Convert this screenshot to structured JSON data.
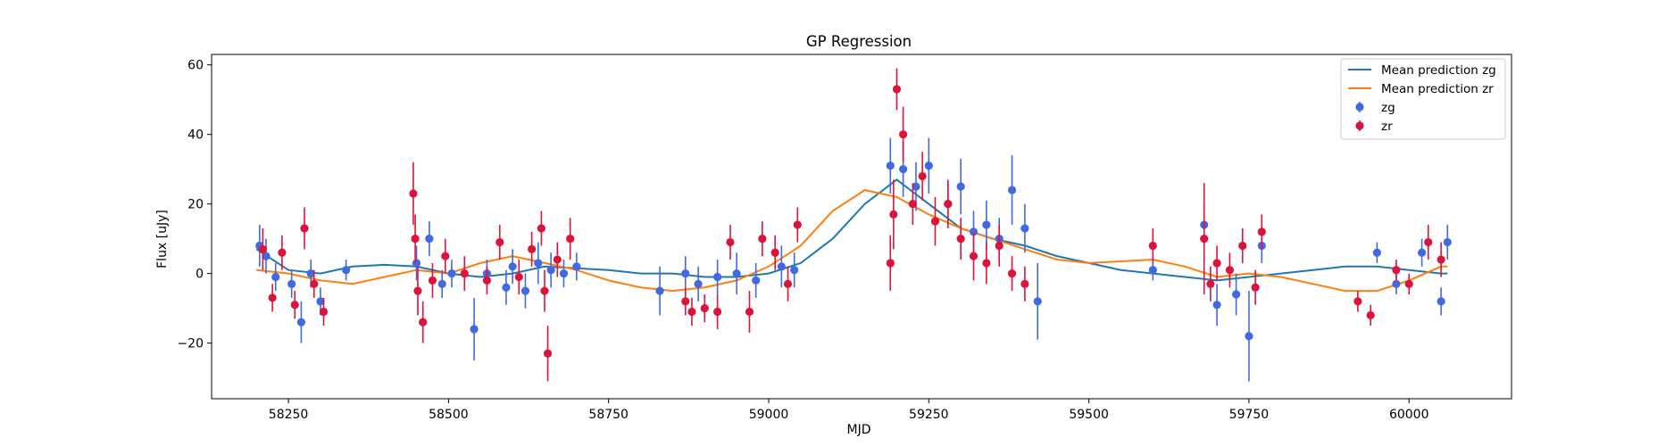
{
  "chart_data": {
    "type": "scatter",
    "title": "GP Regression",
    "xlabel": "MJD",
    "ylabel": "Flux [uJy]",
    "xlim": [
      58130,
      60160
    ],
    "ylim": [
      -36,
      63
    ],
    "xticks": [
      58250,
      58500,
      58750,
      59000,
      59250,
      59500,
      59750,
      60000
    ],
    "yticks": [
      -20,
      0,
      20,
      40,
      60
    ],
    "legend_position": "upper right",
    "grid": false,
    "series": [
      {
        "name": "Mean prediction zg",
        "kind": "line",
        "color": "#1f77b4",
        "x": [
          58200,
          58250,
          58300,
          58350,
          58400,
          58450,
          58500,
          58550,
          58600,
          58650,
          58700,
          58750,
          58800,
          58850,
          58900,
          58950,
          59000,
          59050,
          59100,
          59150,
          59200,
          59250,
          59300,
          59350,
          59400,
          59450,
          59500,
          59550,
          59600,
          59650,
          59700,
          59750,
          59800,
          59850,
          59900,
          59950,
          60000,
          60050,
          60060
        ],
        "y": [
          7,
          1,
          0,
          2,
          2.5,
          2,
          0,
          -1,
          0,
          2,
          1.5,
          1,
          0,
          0,
          -1,
          -1,
          0,
          3,
          10,
          20,
          27,
          20,
          13,
          10,
          8,
          5,
          3,
          1,
          0,
          -1,
          -2,
          -1,
          0,
          1,
          2,
          2,
          1,
          0,
          0
        ]
      },
      {
        "name": "Mean prediction zr",
        "kind": "line",
        "color": "#ff7f0e",
        "x": [
          58200,
          58250,
          58300,
          58350,
          58400,
          58450,
          58500,
          58550,
          58600,
          58650,
          58700,
          58750,
          58800,
          58850,
          58900,
          58950,
          59000,
          59050,
          59100,
          59150,
          59200,
          59250,
          59300,
          59350,
          59400,
          59450,
          59500,
          59550,
          59600,
          59650,
          59700,
          59750,
          59800,
          59850,
          59900,
          59950,
          60000,
          60050,
          60060
        ],
        "y": [
          1,
          0,
          -2,
          -3,
          -1,
          1,
          0,
          3,
          5,
          3,
          1,
          -2,
          -4,
          -5,
          -4,
          -2,
          2,
          8,
          18,
          24,
          22,
          17,
          13,
          10,
          7,
          4,
          3,
          3.5,
          4,
          2,
          -1,
          0,
          -1,
          -3,
          -5,
          -5,
          -2,
          2,
          2
        ]
      },
      {
        "name": "zg",
        "kind": "errorbar",
        "color": "#4169e1",
        "x": [
          58205,
          58215,
          58230,
          58255,
          58270,
          58285,
          58300,
          58340,
          58450,
          58470,
          58490,
          58505,
          58540,
          58560,
          58590,
          58600,
          58620,
          58640,
          58660,
          58680,
          58700,
          58830,
          58870,
          58890,
          58920,
          58950,
          58980,
          59020,
          59040,
          59190,
          59210,
          59230,
          59250,
          59280,
          59300,
          59320,
          59340,
          59360,
          59380,
          59400,
          59420,
          59600,
          59680,
          59700,
          59730,
          59750,
          59770,
          59950,
          59980,
          60020,
          60050,
          60060
        ],
        "y": [
          8,
          5,
          -1,
          -3,
          -14,
          0,
          -8,
          1,
          3,
          10,
          -3,
          0,
          -16,
          0,
          -4,
          2,
          -5,
          3,
          1,
          0,
          2,
          -5,
          0,
          -3,
          -1,
          0,
          -2,
          2,
          1,
          31,
          30,
          25,
          31,
          20,
          25,
          12,
          14,
          10,
          24,
          13,
          -8,
          1,
          14,
          -9,
          -6,
          -18,
          8,
          6,
          -3,
          6,
          -8,
          9
        ],
        "err": [
          6,
          5,
          4,
          4,
          6,
          4,
          4,
          3,
          5,
          5,
          4,
          4,
          9,
          4,
          5,
          5,
          5,
          6,
          5,
          4,
          4,
          7,
          5,
          5,
          5,
          6,
          5,
          6,
          5,
          8,
          8,
          7,
          8,
          6,
          8,
          6,
          7,
          6,
          10,
          7,
          11,
          3,
          6,
          6,
          6,
          13,
          5,
          3,
          3,
          4,
          4,
          5
        ]
      },
      {
        "name": "zr",
        "kind": "errorbar",
        "color": "#dc143c",
        "x": [
          58210,
          58225,
          58240,
          58260,
          58275,
          58290,
          58305,
          58445,
          58448,
          58452,
          58460,
          58475,
          58495,
          58525,
          58560,
          58580,
          58610,
          58630,
          58645,
          58650,
          58655,
          58670,
          58690,
          58870,
          58880,
          58900,
          58920,
          58940,
          58970,
          58990,
          59010,
          59030,
          59045,
          59190,
          59195,
          59200,
          59210,
          59225,
          59240,
          59260,
          59280,
          59300,
          59320,
          59340,
          59360,
          59380,
          59400,
          59600,
          59680,
          59690,
          59700,
          59720,
          59740,
          59760,
          59770,
          59920,
          59940,
          59980,
          60000,
          60030,
          60050
        ],
        "y": [
          7,
          -7,
          6,
          -9,
          13,
          -3,
          -11,
          23,
          10,
          -5,
          -14,
          -2,
          5,
          0,
          -2,
          9,
          -1,
          7,
          13,
          -5,
          -23,
          4,
          10,
          -8,
          -11,
          -10,
          -11,
          9,
          -11,
          10,
          6,
          -3,
          14,
          3,
          17,
          53,
          40,
          20,
          28,
          15,
          20,
          10,
          5,
          3,
          8,
          0,
          -3,
          8,
          10,
          -3,
          3,
          1,
          8,
          -4,
          12,
          -8,
          -12,
          1,
          -3,
          9,
          4
        ],
        "err": [
          6,
          4,
          5,
          4,
          6,
          4,
          4,
          9,
          7,
          7,
          6,
          5,
          5,
          5,
          4,
          5,
          5,
          5,
          5,
          6,
          8,
          5,
          6,
          4,
          4,
          4,
          5,
          5,
          6,
          5,
          5,
          5,
          5,
          8,
          10,
          6,
          8,
          6,
          7,
          7,
          7,
          6,
          7,
          6,
          6,
          5,
          5,
          5,
          16,
          5,
          5,
          5,
          5,
          5,
          5,
          3,
          3,
          3,
          3,
          5,
          5
        ]
      }
    ]
  }
}
